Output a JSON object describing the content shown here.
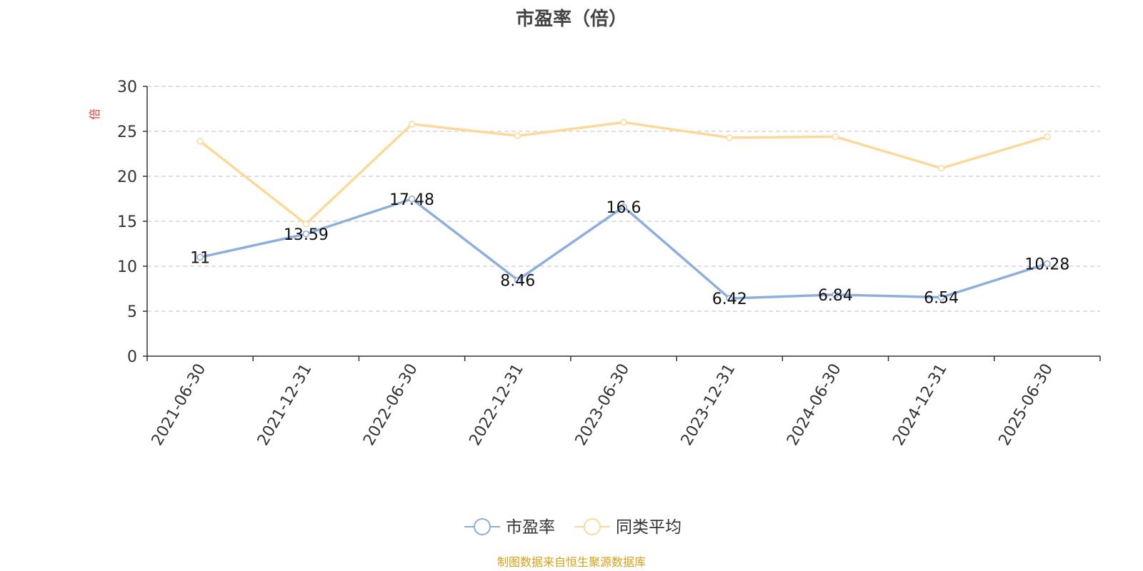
{
  "chart_data": {
    "type": "line",
    "title": "市盈率（倍）",
    "ylabel": "倍",
    "ylim": [
      0,
      30
    ],
    "yticks": [
      0,
      5,
      10,
      15,
      20,
      25,
      30
    ],
    "categories": [
      "2021-06-30",
      "2021-12-31",
      "2022-06-30",
      "2022-12-31",
      "2023-06-30",
      "2023-12-31",
      "2024-06-30",
      "2024-12-31",
      "2025-06-30"
    ],
    "series": [
      {
        "name": "市盈率",
        "color": "#8eaedc",
        "labels": true,
        "values": [
          11,
          13.59,
          17.48,
          8.46,
          16.6,
          6.42,
          6.84,
          6.54,
          10.28
        ]
      },
      {
        "name": "同类平均",
        "color": "#fbd99a",
        "labels": false,
        "values": [
          23.9,
          14.7,
          25.8,
          24.5,
          26.0,
          24.3,
          24.4,
          20.9,
          24.4
        ]
      }
    ],
    "grid": true,
    "legend": "bottom-center"
  },
  "source_text": "制图数据来自恒生聚源数据库"
}
